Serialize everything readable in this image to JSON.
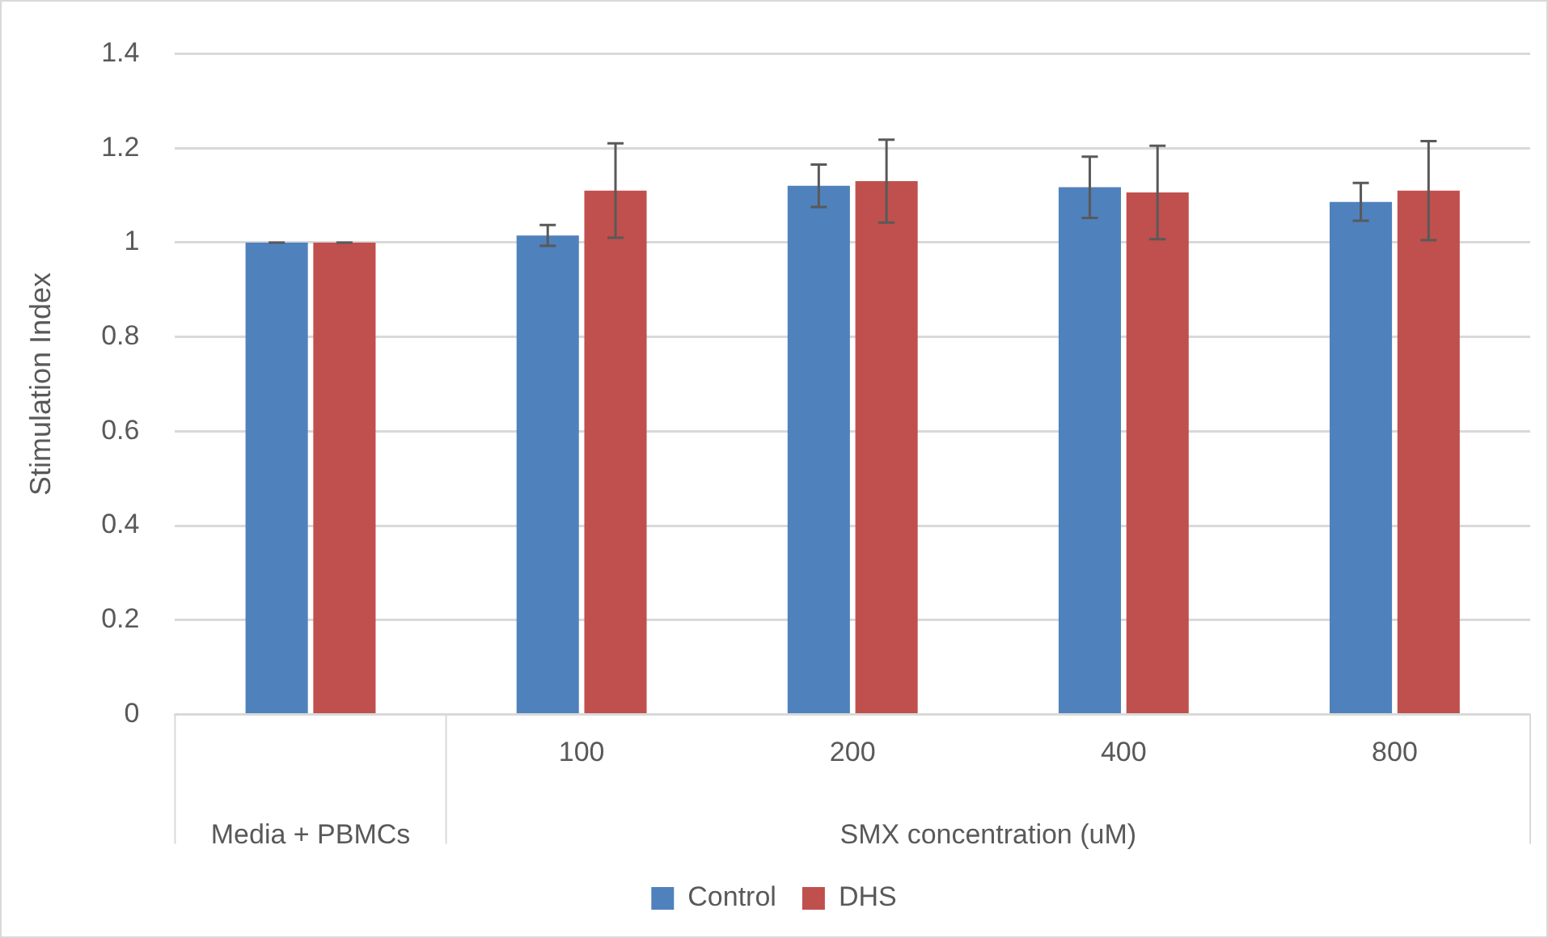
{
  "chart_data": {
    "type": "bar",
    "ylabel": "Stimulation Index",
    "xlabel": "SMX concentration (uM)",
    "categories": [
      null,
      "100",
      "200",
      "400",
      "800"
    ],
    "annotations": [
      "Media + PBMCs"
    ],
    "series": [
      {
        "name": "Control",
        "color": "#4f81bd",
        "values": [
          1.0,
          1.015,
          1.12,
          1.117,
          1.086
        ],
        "errors": [
          0,
          0.022,
          0.045,
          0.065,
          0.04
        ]
      },
      {
        "name": "DHS",
        "color": "#c0504d",
        "values": [
          1.0,
          1.11,
          1.13,
          1.106,
          1.11
        ],
        "errors": [
          0,
          0.1,
          0.088,
          0.099,
          0.105
        ]
      }
    ],
    "ylim": [
      0,
      1.4
    ],
    "yticks": [
      0,
      0.2,
      0.4,
      0.6,
      0.8,
      1,
      1.2,
      1.4
    ],
    "grid": "y",
    "legend": "bottom"
  }
}
